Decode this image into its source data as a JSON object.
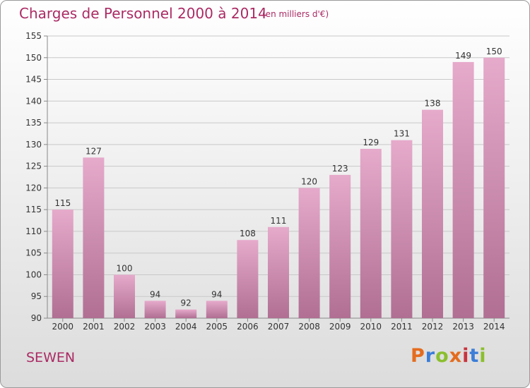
{
  "header": {
    "title": "Charges de Personnel 2000 à 2014",
    "subtitle": "(en milliers d'€)"
  },
  "footer": {
    "commune": "SEWEN",
    "logo_text": "Proxiti",
    "logo_colors": [
      "#e46c1e",
      "#3b7dd8",
      "#8bbf2e",
      "#e46c1e",
      "#c8343e",
      "#3b7dd8",
      "#8bbf2e"
    ]
  },
  "colors": {
    "bar_top": "#e6aacb",
    "bar_bottom": "#b06f93",
    "grid": "#c8c8c8",
    "axis": "#888888",
    "text": "#333333",
    "accent": "#ab2b64"
  },
  "chart_data": {
    "type": "bar",
    "title": "Charges de Personnel 2000 à 2014",
    "subtitle": "(en milliers d'€)",
    "xlabel": "",
    "ylabel": "",
    "categories": [
      "2000",
      "2001",
      "2002",
      "2003",
      "2004",
      "2005",
      "2006",
      "2007",
      "2008",
      "2009",
      "2010",
      "2011",
      "2012",
      "2013",
      "2014"
    ],
    "values": [
      115,
      127,
      100,
      94,
      92,
      94,
      108,
      111,
      120,
      123,
      129,
      131,
      138,
      149,
      150
    ],
    "ylim": [
      90,
      155
    ],
    "yticks": [
      90,
      95,
      100,
      105,
      110,
      115,
      120,
      125,
      130,
      135,
      140,
      145,
      150,
      155
    ],
    "grid": true,
    "legend": "none"
  }
}
